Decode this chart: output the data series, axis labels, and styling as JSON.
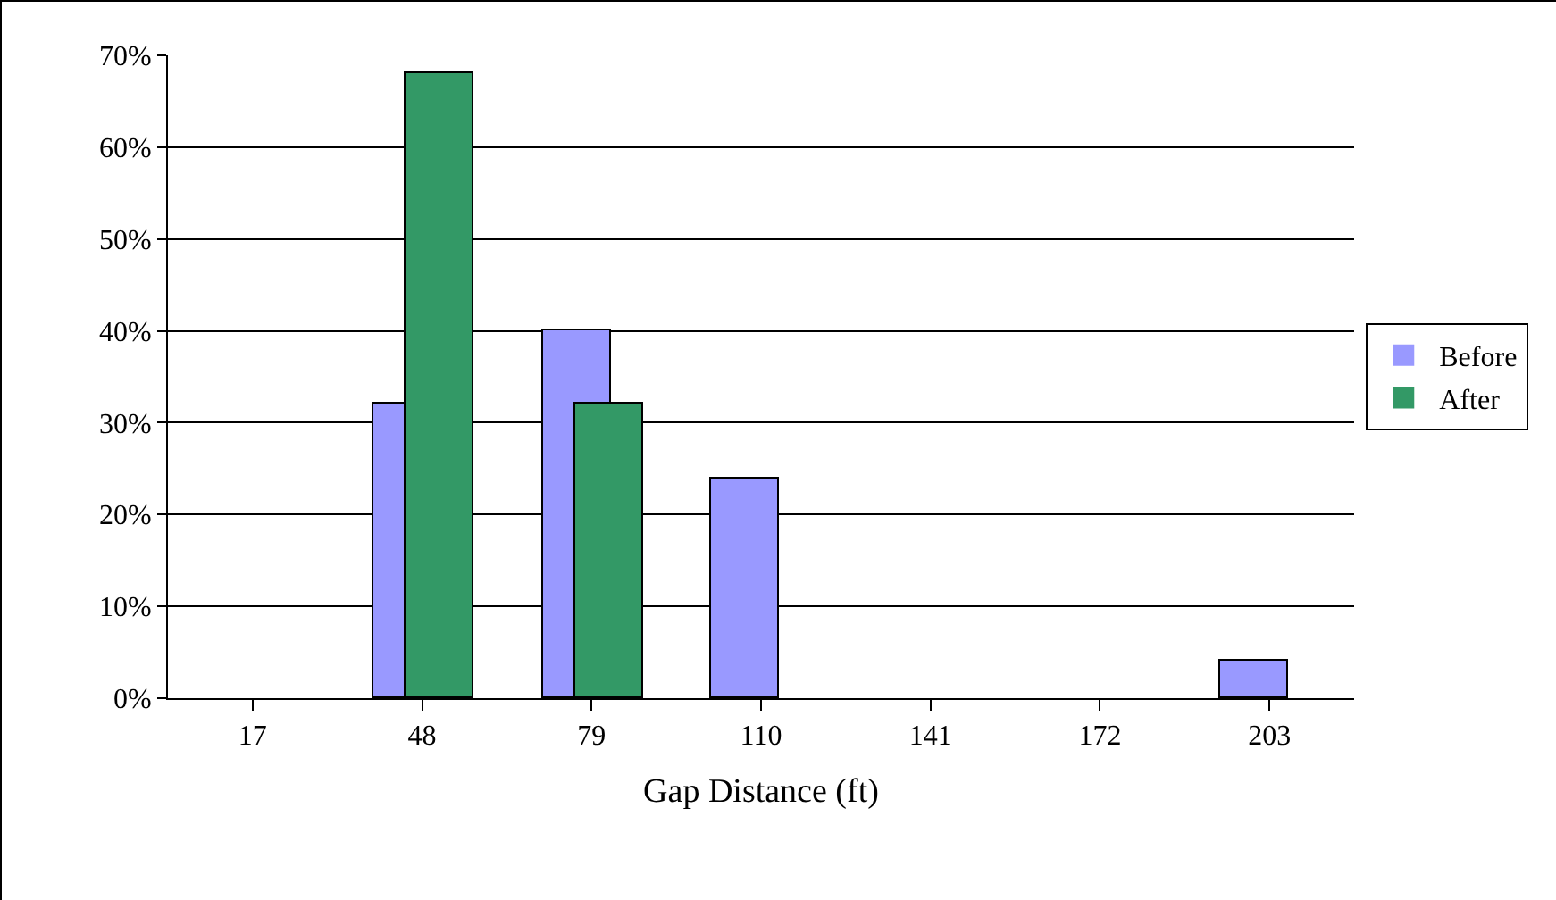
{
  "chart_data": {
    "type": "bar",
    "xlabel": "Gap Distance (ft)",
    "categories": [
      "17",
      "48",
      "79",
      "110",
      "141",
      "172",
      "203"
    ],
    "series": [
      {
        "name": "Before",
        "color": "#9999ff",
        "values": [
          0,
          32,
          40,
          24,
          0,
          0,
          4
        ]
      },
      {
        "name": "After",
        "color": "#339966",
        "values": [
          0,
          68,
          32,
          0,
          0,
          0,
          0
        ]
      }
    ],
    "ylim": [
      0,
      70
    ],
    "yticks": [
      {
        "value": 0,
        "label": "0%"
      },
      {
        "value": 10,
        "label": "10%"
      },
      {
        "value": 20,
        "label": "20%"
      },
      {
        "value": 30,
        "label": "30%"
      },
      {
        "value": 40,
        "label": "40%"
      },
      {
        "value": 50,
        "label": "50%"
      },
      {
        "value": 60,
        "label": "60%"
      },
      {
        "value": 70,
        "label": "70%"
      }
    ],
    "grid": "y",
    "legend": "right"
  }
}
